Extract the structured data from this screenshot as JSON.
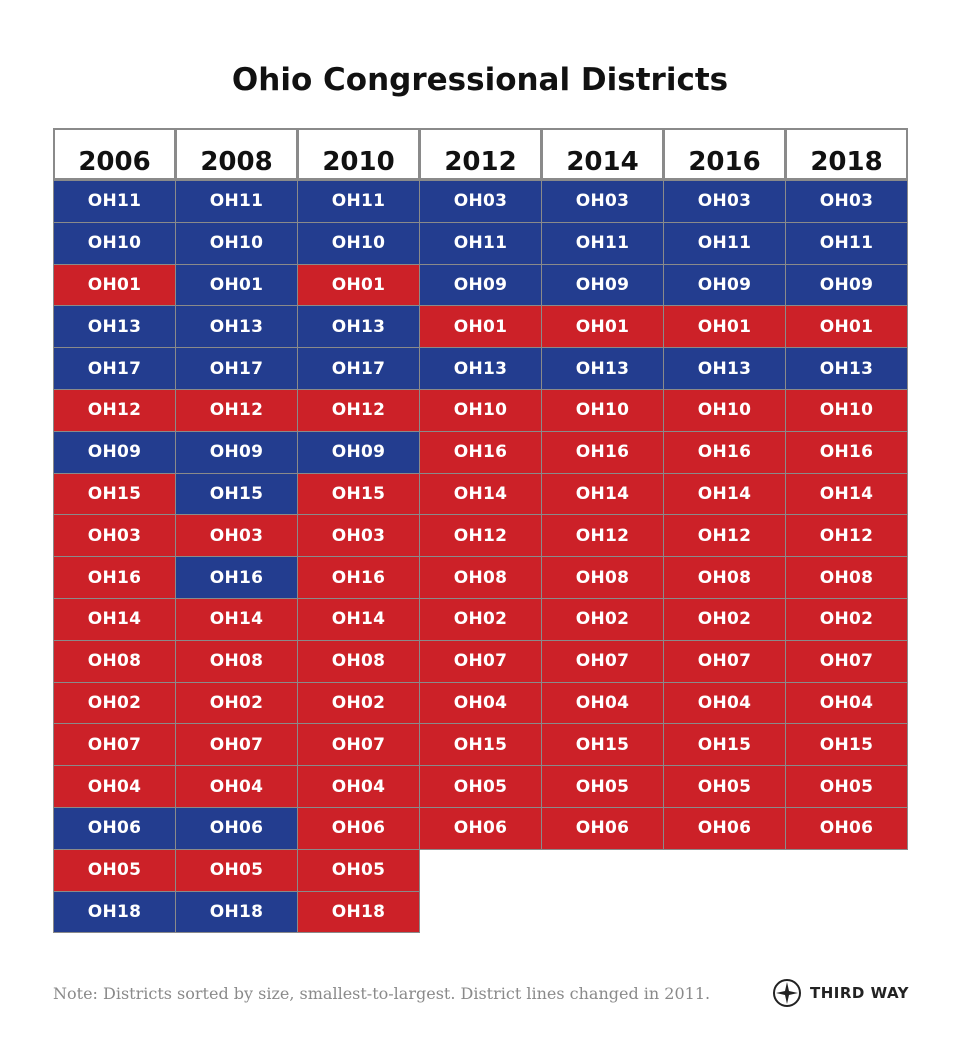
{
  "title": "Ohio Congressional Districts",
  "footer_note": "Note: Districts sorted by size, smallest-to-largest. District lines changed in 2011.",
  "logo_text": "THIRD WAY",
  "colors": {
    "D": "#233d8f",
    "R": "#cc2128"
  },
  "chart_data": {
    "type": "table",
    "title": "Ohio Congressional Districts",
    "columns": [
      "2006",
      "2008",
      "2010",
      "2012",
      "2014",
      "2016",
      "2018"
    ],
    "rows_by_column": [
      [
        {
          "d": "OH11",
          "p": "D"
        },
        {
          "d": "OH10",
          "p": "D"
        },
        {
          "d": "OH01",
          "p": "R"
        },
        {
          "d": "OH13",
          "p": "D"
        },
        {
          "d": "OH17",
          "p": "D"
        },
        {
          "d": "OH12",
          "p": "R"
        },
        {
          "d": "OH09",
          "p": "D"
        },
        {
          "d": "OH15",
          "p": "R"
        },
        {
          "d": "OH03",
          "p": "R"
        },
        {
          "d": "OH16",
          "p": "R"
        },
        {
          "d": "OH14",
          "p": "R"
        },
        {
          "d": "OH08",
          "p": "R"
        },
        {
          "d": "OH02",
          "p": "R"
        },
        {
          "d": "OH07",
          "p": "R"
        },
        {
          "d": "OH04",
          "p": "R"
        },
        {
          "d": "OH06",
          "p": "D"
        },
        {
          "d": "OH05",
          "p": "R"
        },
        {
          "d": "OH18",
          "p": "D"
        }
      ],
      [
        {
          "d": "OH11",
          "p": "D"
        },
        {
          "d": "OH10",
          "p": "D"
        },
        {
          "d": "OH01",
          "p": "D"
        },
        {
          "d": "OH13",
          "p": "D"
        },
        {
          "d": "OH17",
          "p": "D"
        },
        {
          "d": "OH12",
          "p": "R"
        },
        {
          "d": "OH09",
          "p": "D"
        },
        {
          "d": "OH15",
          "p": "D"
        },
        {
          "d": "OH03",
          "p": "R"
        },
        {
          "d": "OH16",
          "p": "D"
        },
        {
          "d": "OH14",
          "p": "R"
        },
        {
          "d": "OH08",
          "p": "R"
        },
        {
          "d": "OH02",
          "p": "R"
        },
        {
          "d": "OH07",
          "p": "R"
        },
        {
          "d": "OH04",
          "p": "R"
        },
        {
          "d": "OH06",
          "p": "D"
        },
        {
          "d": "OH05",
          "p": "R"
        },
        {
          "d": "OH18",
          "p": "D"
        }
      ],
      [
        {
          "d": "OH11",
          "p": "D"
        },
        {
          "d": "OH10",
          "p": "D"
        },
        {
          "d": "OH01",
          "p": "R"
        },
        {
          "d": "OH13",
          "p": "D"
        },
        {
          "d": "OH17",
          "p": "D"
        },
        {
          "d": "OH12",
          "p": "R"
        },
        {
          "d": "OH09",
          "p": "D"
        },
        {
          "d": "OH15",
          "p": "R"
        },
        {
          "d": "OH03",
          "p": "R"
        },
        {
          "d": "OH16",
          "p": "R"
        },
        {
          "d": "OH14",
          "p": "R"
        },
        {
          "d": "OH08",
          "p": "R"
        },
        {
          "d": "OH02",
          "p": "R"
        },
        {
          "d": "OH07",
          "p": "R"
        },
        {
          "d": "OH04",
          "p": "R"
        },
        {
          "d": "OH06",
          "p": "R"
        },
        {
          "d": "OH05",
          "p": "R"
        },
        {
          "d": "OH18",
          "p": "R"
        }
      ],
      [
        {
          "d": "OH03",
          "p": "D"
        },
        {
          "d": "OH11",
          "p": "D"
        },
        {
          "d": "OH09",
          "p": "D"
        },
        {
          "d": "OH01",
          "p": "R"
        },
        {
          "d": "OH13",
          "p": "D"
        },
        {
          "d": "OH10",
          "p": "R"
        },
        {
          "d": "OH16",
          "p": "R"
        },
        {
          "d": "OH14",
          "p": "R"
        },
        {
          "d": "OH12",
          "p": "R"
        },
        {
          "d": "OH08",
          "p": "R"
        },
        {
          "d": "OH02",
          "p": "R"
        },
        {
          "d": "OH07",
          "p": "R"
        },
        {
          "d": "OH04",
          "p": "R"
        },
        {
          "d": "OH15",
          "p": "R"
        },
        {
          "d": "OH05",
          "p": "R"
        },
        {
          "d": "OH06",
          "p": "R"
        }
      ],
      [
        {
          "d": "OH03",
          "p": "D"
        },
        {
          "d": "OH11",
          "p": "D"
        },
        {
          "d": "OH09",
          "p": "D"
        },
        {
          "d": "OH01",
          "p": "R"
        },
        {
          "d": "OH13",
          "p": "D"
        },
        {
          "d": "OH10",
          "p": "R"
        },
        {
          "d": "OH16",
          "p": "R"
        },
        {
          "d": "OH14",
          "p": "R"
        },
        {
          "d": "OH12",
          "p": "R"
        },
        {
          "d": "OH08",
          "p": "R"
        },
        {
          "d": "OH02",
          "p": "R"
        },
        {
          "d": "OH07",
          "p": "R"
        },
        {
          "d": "OH04",
          "p": "R"
        },
        {
          "d": "OH15",
          "p": "R"
        },
        {
          "d": "OH05",
          "p": "R"
        },
        {
          "d": "OH06",
          "p": "R"
        }
      ],
      [
        {
          "d": "OH03",
          "p": "D"
        },
        {
          "d": "OH11",
          "p": "D"
        },
        {
          "d": "OH09",
          "p": "D"
        },
        {
          "d": "OH01",
          "p": "R"
        },
        {
          "d": "OH13",
          "p": "D"
        },
        {
          "d": "OH10",
          "p": "R"
        },
        {
          "d": "OH16",
          "p": "R"
        },
        {
          "d": "OH14",
          "p": "R"
        },
        {
          "d": "OH12",
          "p": "R"
        },
        {
          "d": "OH08",
          "p": "R"
        },
        {
          "d": "OH02",
          "p": "R"
        },
        {
          "d": "OH07",
          "p": "R"
        },
        {
          "d": "OH04",
          "p": "R"
        },
        {
          "d": "OH15",
          "p": "R"
        },
        {
          "d": "OH05",
          "p": "R"
        },
        {
          "d": "OH06",
          "p": "R"
        }
      ],
      [
        {
          "d": "OH03",
          "p": "D"
        },
        {
          "d": "OH11",
          "p": "D"
        },
        {
          "d": "OH09",
          "p": "D"
        },
        {
          "d": "OH01",
          "p": "R"
        },
        {
          "d": "OH13",
          "p": "D"
        },
        {
          "d": "OH10",
          "p": "R"
        },
        {
          "d": "OH16",
          "p": "R"
        },
        {
          "d": "OH14",
          "p": "R"
        },
        {
          "d": "OH12",
          "p": "R"
        },
        {
          "d": "OH08",
          "p": "R"
        },
        {
          "d": "OH02",
          "p": "R"
        },
        {
          "d": "OH07",
          "p": "R"
        },
        {
          "d": "OH04",
          "p": "R"
        },
        {
          "d": "OH15",
          "p": "R"
        },
        {
          "d": "OH05",
          "p": "R"
        },
        {
          "d": "OH06",
          "p": "R"
        }
      ]
    ]
  }
}
